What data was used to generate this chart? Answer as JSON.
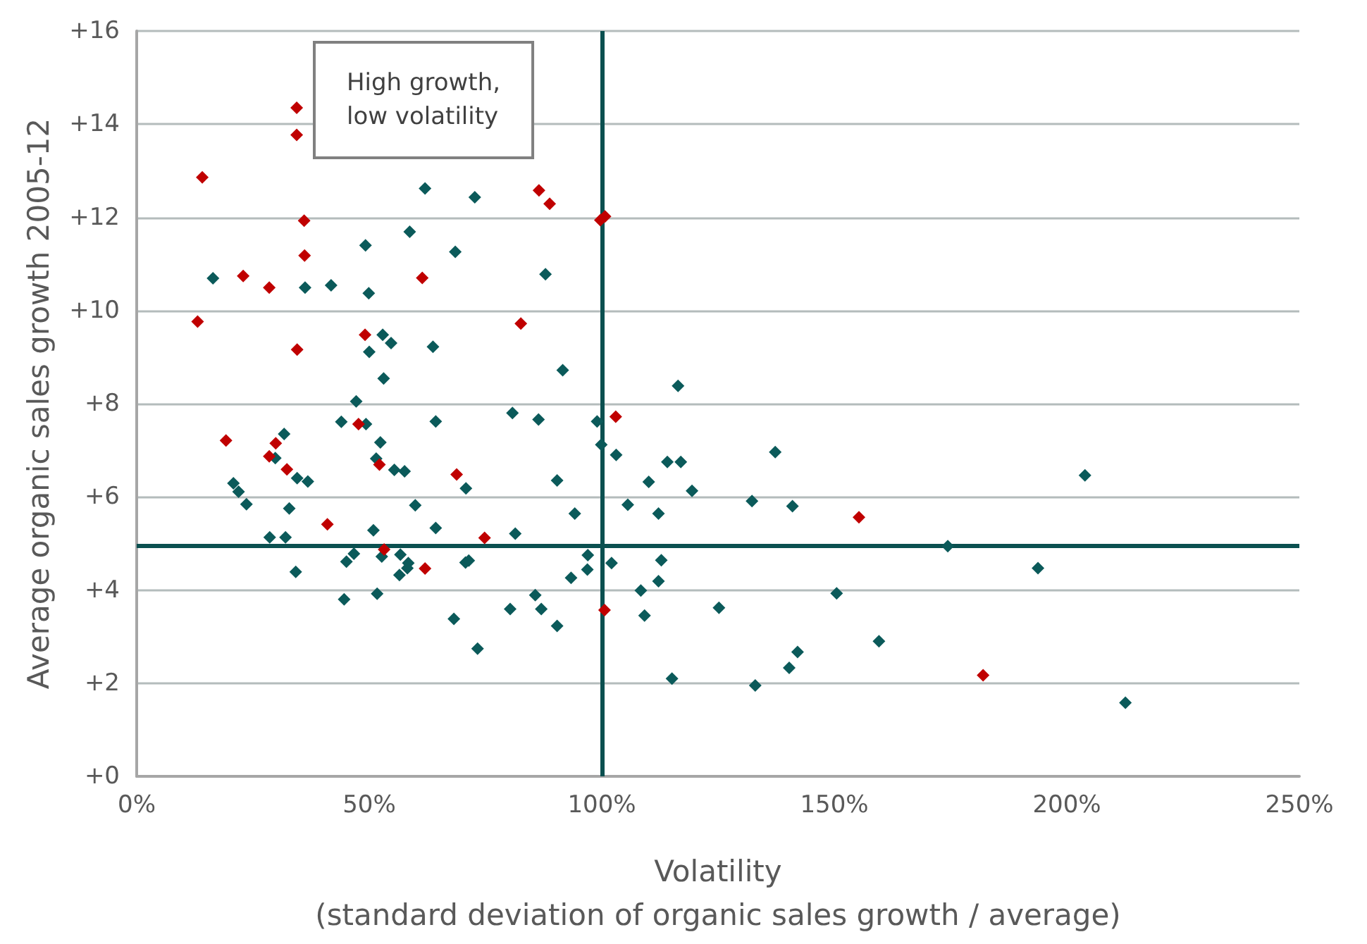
{
  "chart_data": {
    "type": "scatter",
    "xlabel": "Volatility\n(standard deviation of organic sales growth / average)",
    "ylabel": "Average organic sales growth 2005-12",
    "annotations": [
      "High growth,\nlow volatility"
    ],
    "xlim": [
      0,
      250
    ],
    "xticks": [
      {
        "value": 0,
        "label": "0%"
      },
      {
        "value": 50,
        "label": "50%"
      },
      {
        "value": 100,
        "label": "100%"
      },
      {
        "value": 150,
        "label": "150%"
      },
      {
        "value": 200,
        "label": "200%"
      },
      {
        "value": 250,
        "label": "250%"
      }
    ],
    "ylim": [
      0,
      16
    ],
    "yticks": [
      {
        "value": 0,
        "label": "+0"
      },
      {
        "value": 2,
        "label": "+2"
      },
      {
        "value": 4,
        "label": "+4"
      },
      {
        "value": 6,
        "label": "+6"
      },
      {
        "value": 8,
        "label": "+8"
      },
      {
        "value": 10,
        "label": "+10"
      },
      {
        "value": 12,
        "label": "+12"
      },
      {
        "value": 14,
        "label": "+14"
      },
      {
        "value": 16,
        "label": "+16"
      }
    ],
    "grid": "y",
    "marker": "diamond",
    "ref_lines": [
      {
        "axis": "x",
        "value": 100,
        "color": "#0b5050"
      },
      {
        "axis": "y",
        "value": 4.95,
        "color": "#0b5050"
      }
    ],
    "series": [
      {
        "color": "#0b5a5a",
        "x": [
          62.0,
          72.7,
          58.7,
          49.2,
          68.5,
          16.4,
          36.2,
          41.8,
          49.9,
          87.9,
          52.9,
          54.7,
          50.0,
          63.7,
          91.6,
          53.1,
          47.2,
          44.0,
          49.3,
          64.3,
          80.8,
          86.4,
          31.7,
          29.8,
          52.4,
          51.5,
          55.4,
          57.6,
          34.5,
          36.8,
          70.8,
          90.4,
          20.8,
          21.9,
          23.6,
          32.8,
          59.9,
          28.6,
          32.0,
          50.9,
          64.3,
          81.4,
          46.7,
          45.1,
          52.7,
          56.7,
          58.4,
          58.2,
          56.5,
          70.7,
          71.4,
          34.2,
          44.6,
          51.7,
          68.2,
          73.3,
          80.3,
          85.7,
          87.0,
          90.4,
          116.4,
          99.0,
          99.9,
          103.1,
          94.2,
          110.1,
          114.1,
          117.0,
          119.4,
          105.6,
          112.2,
          137.3,
          132.3,
          141.0,
          174.4,
          97.0,
          96.9,
          93.4,
          102.1,
          112.8,
          112.2,
          108.4,
          109.2,
          125.2,
          150.5,
          159.6,
          142.1,
          140.3,
          115.1,
          133.0,
          203.9,
          193.8,
          212.6
        ],
        "values": [
          12.62,
          12.43,
          11.69,
          11.4,
          11.26,
          10.69,
          10.49,
          10.54,
          10.37,
          10.78,
          9.48,
          9.3,
          9.11,
          9.22,
          8.72,
          8.54,
          8.05,
          7.61,
          7.56,
          7.62,
          7.8,
          7.66,
          7.35,
          6.83,
          7.17,
          6.82,
          6.58,
          6.55,
          6.4,
          6.33,
          6.18,
          6.35,
          6.29,
          6.11,
          5.84,
          5.75,
          5.82,
          5.13,
          5.13,
          5.28,
          5.33,
          5.21,
          4.78,
          4.61,
          4.72,
          4.76,
          4.58,
          4.47,
          4.32,
          4.59,
          4.63,
          4.39,
          3.8,
          3.92,
          3.38,
          2.74,
          3.59,
          3.89,
          3.59,
          3.23,
          8.38,
          7.62,
          7.12,
          6.9,
          5.64,
          6.32,
          6.75,
          6.75,
          6.13,
          5.83,
          5.64,
          6.96,
          5.91,
          5.8,
          4.94,
          4.75,
          4.44,
          4.26,
          4.58,
          4.64,
          4.19,
          3.99,
          3.45,
          3.62,
          3.93,
          2.9,
          2.67,
          2.33,
          2.1,
          1.95,
          6.46,
          4.47,
          1.58
        ]
      },
      {
        "color": "#c00000",
        "x": [
          34.4,
          34.4,
          14.1,
          86.5,
          88.8,
          36.0,
          36.1,
          22.9,
          28.5,
          61.4,
          13.1,
          82.6,
          49.1,
          34.5,
          47.7,
          19.2,
          29.9,
          28.5,
          52.2,
          32.3,
          68.8,
          41.0,
          74.8,
          53.2,
          62.0,
          99.7,
          100.7,
          103.0,
          155.3,
          100.6,
          182.0
        ],
        "values": [
          14.35,
          13.77,
          12.86,
          12.58,
          12.29,
          11.93,
          11.18,
          10.74,
          10.49,
          10.7,
          9.76,
          9.72,
          9.48,
          9.16,
          7.56,
          7.21,
          7.15,
          6.87,
          6.69,
          6.59,
          6.48,
          5.41,
          5.12,
          4.87,
          4.46,
          11.94,
          12.02,
          7.72,
          5.56,
          3.57,
          2.17
        ]
      }
    ]
  }
}
